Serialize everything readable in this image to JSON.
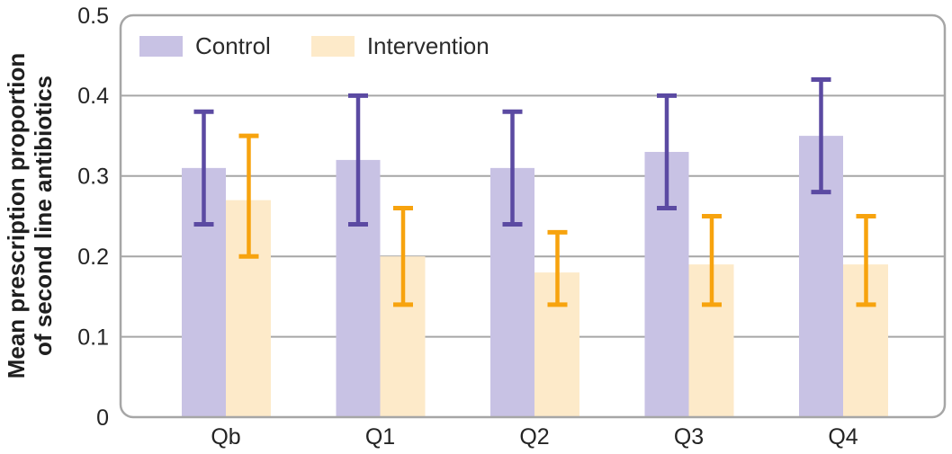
{
  "figure": {
    "ylabel_lines": [
      "Mean prescription proportion",
      "of second line antibiotics"
    ]
  },
  "chart_data": {
    "type": "bar",
    "title": "",
    "xlabel": "",
    "ylabel": "Mean prescription proportion of second line antibiotics",
    "categories": [
      "Qb",
      "Q1",
      "Q2",
      "Q3",
      "Q4"
    ],
    "series": [
      {
        "name": "Control",
        "color": "#c8c2e4",
        "error_color": "#5b4aa2",
        "values": [
          0.31,
          0.32,
          0.31,
          0.33,
          0.35
        ],
        "ci_low": [
          0.24,
          0.24,
          0.24,
          0.26,
          0.28
        ],
        "ci_high": [
          0.38,
          0.4,
          0.38,
          0.4,
          0.42
        ]
      },
      {
        "name": "Intervention",
        "color": "#fdeac9",
        "error_color": "#f7a30e",
        "values": [
          0.27,
          0.2,
          0.18,
          0.19,
          0.19
        ],
        "ci_low": [
          0.2,
          0.14,
          0.14,
          0.14,
          0.14
        ],
        "ci_high": [
          0.35,
          0.26,
          0.23,
          0.25,
          0.25
        ]
      }
    ],
    "ylim": [
      0,
      0.5
    ],
    "yticks": [
      0,
      0.1,
      0.2,
      0.3,
      0.4,
      0.5
    ],
    "ytick_labels": [
      "0",
      "0.1",
      "0.2",
      "0.3",
      "0.4",
      "0.5"
    ],
    "grid": true,
    "legend_position": "top-left-inside",
    "colors": {
      "grid": "#a6a6a6",
      "border": "#a6a6a6",
      "text": "#242424"
    }
  }
}
